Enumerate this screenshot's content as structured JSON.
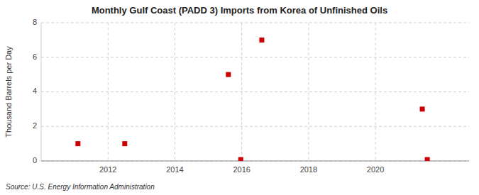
{
  "chart_data": {
    "type": "scatter",
    "title": "Monthly Gulf Coast (PADD 3) Imports from Korea of Unfinished Oils",
    "y_label": "Thousand Barrels per Day",
    "source": "Source: U.S. Energy Information Administration",
    "x": [
      2011.1,
      2012.5,
      2015.6,
      2015.97,
      2016.6,
      2021.4,
      2021.55
    ],
    "values": [
      1,
      1,
      5,
      0.08,
      7,
      3,
      0.08
    ],
    "color": "#cc0000",
    "marker": "square",
    "xlim": [
      2010.0,
      2022.8
    ],
    "ylim": [
      0,
      8
    ],
    "xticks": [
      2012,
      2014,
      2016,
      2018,
      2020
    ],
    "yticks": [
      0,
      2,
      4,
      6,
      8
    ],
    "grid": true
  }
}
